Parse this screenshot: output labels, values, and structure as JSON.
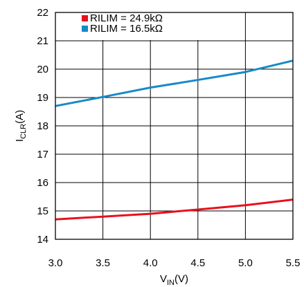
{
  "chart_data": {
    "type": "line",
    "title": "",
    "xlabel": {
      "main": "V",
      "sub": "IN",
      "suffix": "(V)"
    },
    "ylabel": {
      "main": "I",
      "sub": "CLR",
      "suffix": "(A)"
    },
    "xlim": [
      3.0,
      5.5
    ],
    "ylim": [
      14,
      22
    ],
    "xticks": [
      3.0,
      3.5,
      4.0,
      4.5,
      5.0,
      5.5
    ],
    "xtick_labels": [
      "3.0",
      "3.5",
      "4.0",
      "4.5",
      "5.0",
      "5.5"
    ],
    "yticks": [
      14,
      15,
      16,
      17,
      18,
      19,
      20,
      21,
      22
    ],
    "ytick_labels": [
      "14",
      "15",
      "16",
      "17",
      "18",
      "19",
      "20",
      "21",
      "22"
    ],
    "grid": true,
    "legend_position": "top-left",
    "series": [
      {
        "name": "RILIM = 24.9kΩ",
        "color": "#e8101c",
        "x": [
          3.0,
          3.5,
          4.0,
          4.5,
          5.0,
          5.5
        ],
        "y": [
          14.7,
          14.8,
          14.9,
          15.05,
          15.2,
          15.4
        ]
      },
      {
        "name": "RILIM = 16.5kΩ",
        "color": "#1789c8",
        "x": [
          3.0,
          3.5,
          4.0,
          4.5,
          5.0,
          5.5
        ],
        "y": [
          18.7,
          19.02,
          19.35,
          19.62,
          19.9,
          20.3
        ]
      }
    ]
  }
}
